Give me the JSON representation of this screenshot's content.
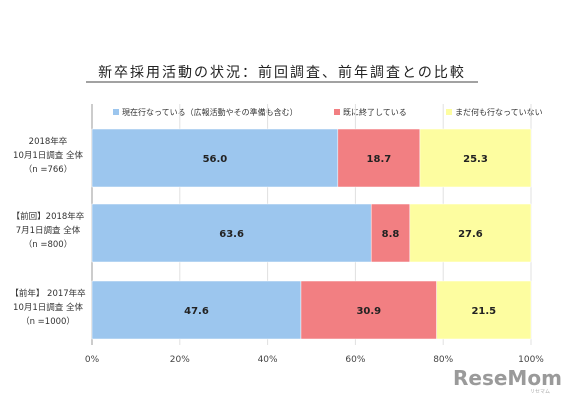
{
  "chart_data": {
    "type": "bar",
    "orientation": "horizontal",
    "stacked": true,
    "title": "新卒採用活動の状況：前回調査、前年調査との比較",
    "categories": [
      [
        "2018年卒",
        "10月1日調査 全体",
        "（n =766）"
      ],
      [
        "【前回】2018年卒",
        "7月1日調査 全体",
        "（n =800）"
      ],
      [
        "【前年】 2017年卒",
        "10月1日調査 全体",
        "（n =1000）"
      ]
    ],
    "series": [
      {
        "name": "現在行なっている（広報活動やその準備も含む）",
        "values": [
          56.0,
          63.6,
          47.6
        ],
        "color": "#9cc6ee"
      },
      {
        "name": "既に終了している",
        "values": [
          18.7,
          8.8,
          30.9
        ],
        "color": "#f27f82"
      },
      {
        "name": "まだ何も行なっていない",
        "values": [
          25.3,
          27.6,
          21.5
        ],
        "color": "#fdfda0"
      }
    ],
    "x_ticks": [
      "0%",
      "20%",
      "40%",
      "60%",
      "80%",
      "100%"
    ],
    "xlim": [
      0,
      100
    ],
    "grid": true,
    "legend_position": "top"
  },
  "watermark": {
    "text": "ReseMom",
    "sub": "リセマム"
  }
}
